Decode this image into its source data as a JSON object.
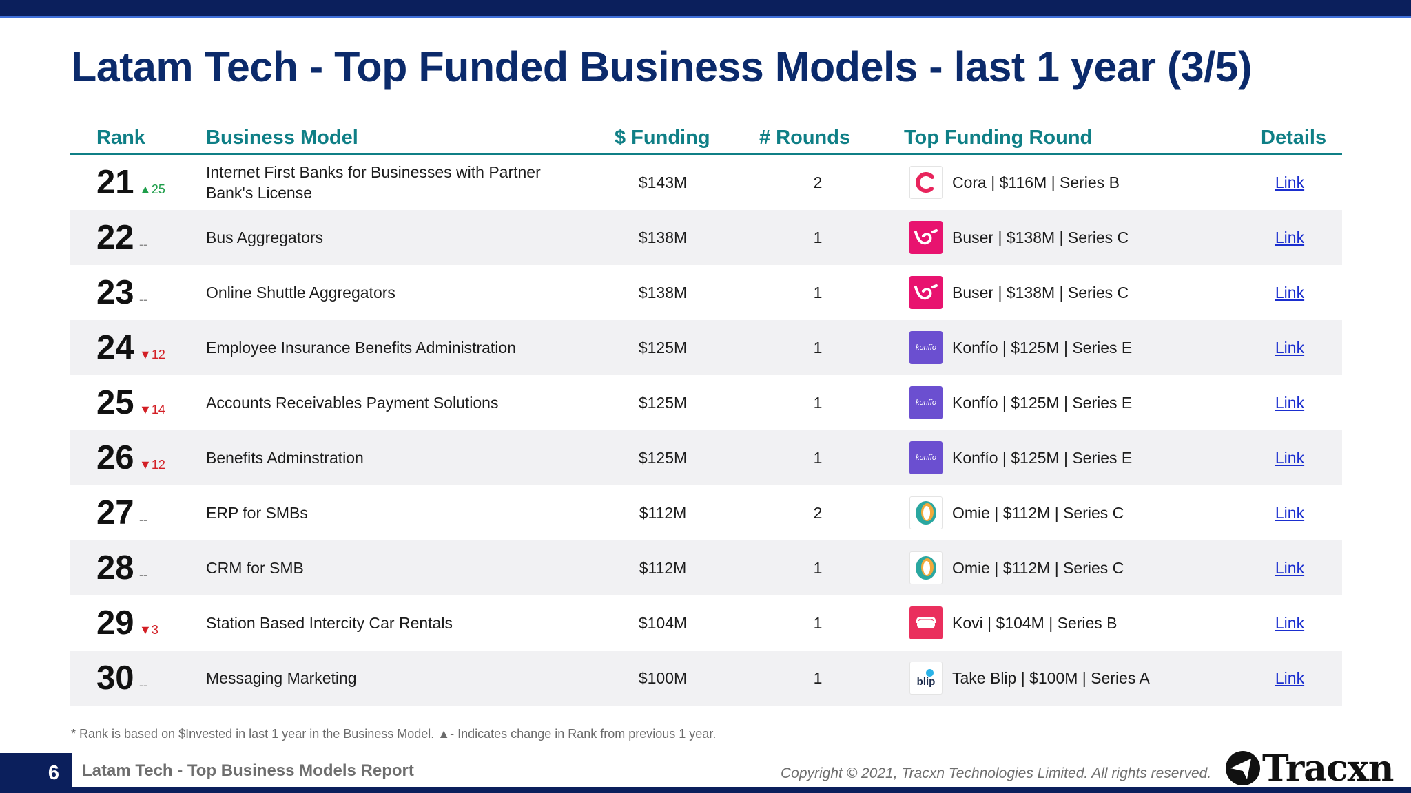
{
  "title": "Latam Tech - Top Funded Business Models - last 1 year (3/5)",
  "columns": {
    "rank": "Rank",
    "model": "Business Model",
    "funding": "$ Funding",
    "rounds": "# Rounds",
    "top_round": "Top Funding Round",
    "details": "Details"
  },
  "rows": [
    {
      "rank": "21",
      "change": "▲25",
      "trend": "up",
      "model": "Internet First Banks for Businesses with Partner Bank's License",
      "funding": "$143M",
      "rounds": "2",
      "top_round": "Cora | $116M | Series B",
      "logo": "cora-logo",
      "link": "Link"
    },
    {
      "rank": "22",
      "change": "--",
      "trend": "same",
      "model": "Bus Aggregators",
      "funding": "$138M",
      "rounds": "1",
      "top_round": "Buser | $138M | Series C",
      "logo": "buser-logo",
      "link": "Link"
    },
    {
      "rank": "23",
      "change": "--",
      "trend": "same",
      "model": "Online Shuttle Aggregators",
      "funding": "$138M",
      "rounds": "1",
      "top_round": "Buser | $138M | Series C",
      "logo": "buser-logo",
      "link": "Link"
    },
    {
      "rank": "24",
      "change": "▼12",
      "trend": "down",
      "model": "Employee Insurance Benefits Administration",
      "funding": "$125M",
      "rounds": "1",
      "top_round": "Konfío | $125M | Series E",
      "logo": "konfio-logo",
      "link": "Link"
    },
    {
      "rank": "25",
      "change": "▼14",
      "trend": "down",
      "model": "Accounts Receivables Payment Solutions",
      "funding": "$125M",
      "rounds": "1",
      "top_round": "Konfío | $125M | Series E",
      "logo": "konfio-logo",
      "link": "Link"
    },
    {
      "rank": "26",
      "change": "▼12",
      "trend": "down",
      "model": "Benefits Adminstration",
      "funding": "$125M",
      "rounds": "1",
      "top_round": "Konfío | $125M | Series E",
      "logo": "konfio-logo",
      "link": "Link"
    },
    {
      "rank": "27",
      "change": "--",
      "trend": "same",
      "model": "ERP for SMBs",
      "funding": "$112M",
      "rounds": "2",
      "top_round": "Omie | $112M | Series C",
      "logo": "omie-logo",
      "link": "Link"
    },
    {
      "rank": "28",
      "change": "--",
      "trend": "same",
      "model": "CRM for SMB",
      "funding": "$112M",
      "rounds": "1",
      "top_round": "Omie | $112M | Series C",
      "logo": "omie-logo",
      "link": "Link"
    },
    {
      "rank": "29",
      "change": "▼3",
      "trend": "down",
      "model": "Station Based Intercity Car Rentals",
      "funding": "$104M",
      "rounds": "1",
      "top_round": "Kovi | $104M | Series B",
      "logo": "kovi-logo",
      "link": "Link"
    },
    {
      "rank": "30",
      "change": "--",
      "trend": "same",
      "model": "Messaging Marketing",
      "funding": "$100M",
      "rounds": "1",
      "top_round": "Take Blip | $100M | Series A",
      "logo": "blip-logo",
      "link": "Link"
    }
  ],
  "footnote": "*  Rank is based on $Invested in last 1 year in the Business Model.  ▲- Indicates change in Rank from previous 1 year.",
  "footer": {
    "page": "6",
    "report": "Latam Tech - Top Business Models Report",
    "copyright": "Copyright © 2021, Tracxn Technologies Limited. All rights reserved.",
    "brand": "Tracxn"
  },
  "logo_text": {
    "konfio": "konfío",
    "blip": "blip"
  },
  "colors": {
    "navy": "#0b1f5c",
    "teal_header": "#0f7f86",
    "up": "#1e9e4a",
    "down": "#d31f25"
  }
}
